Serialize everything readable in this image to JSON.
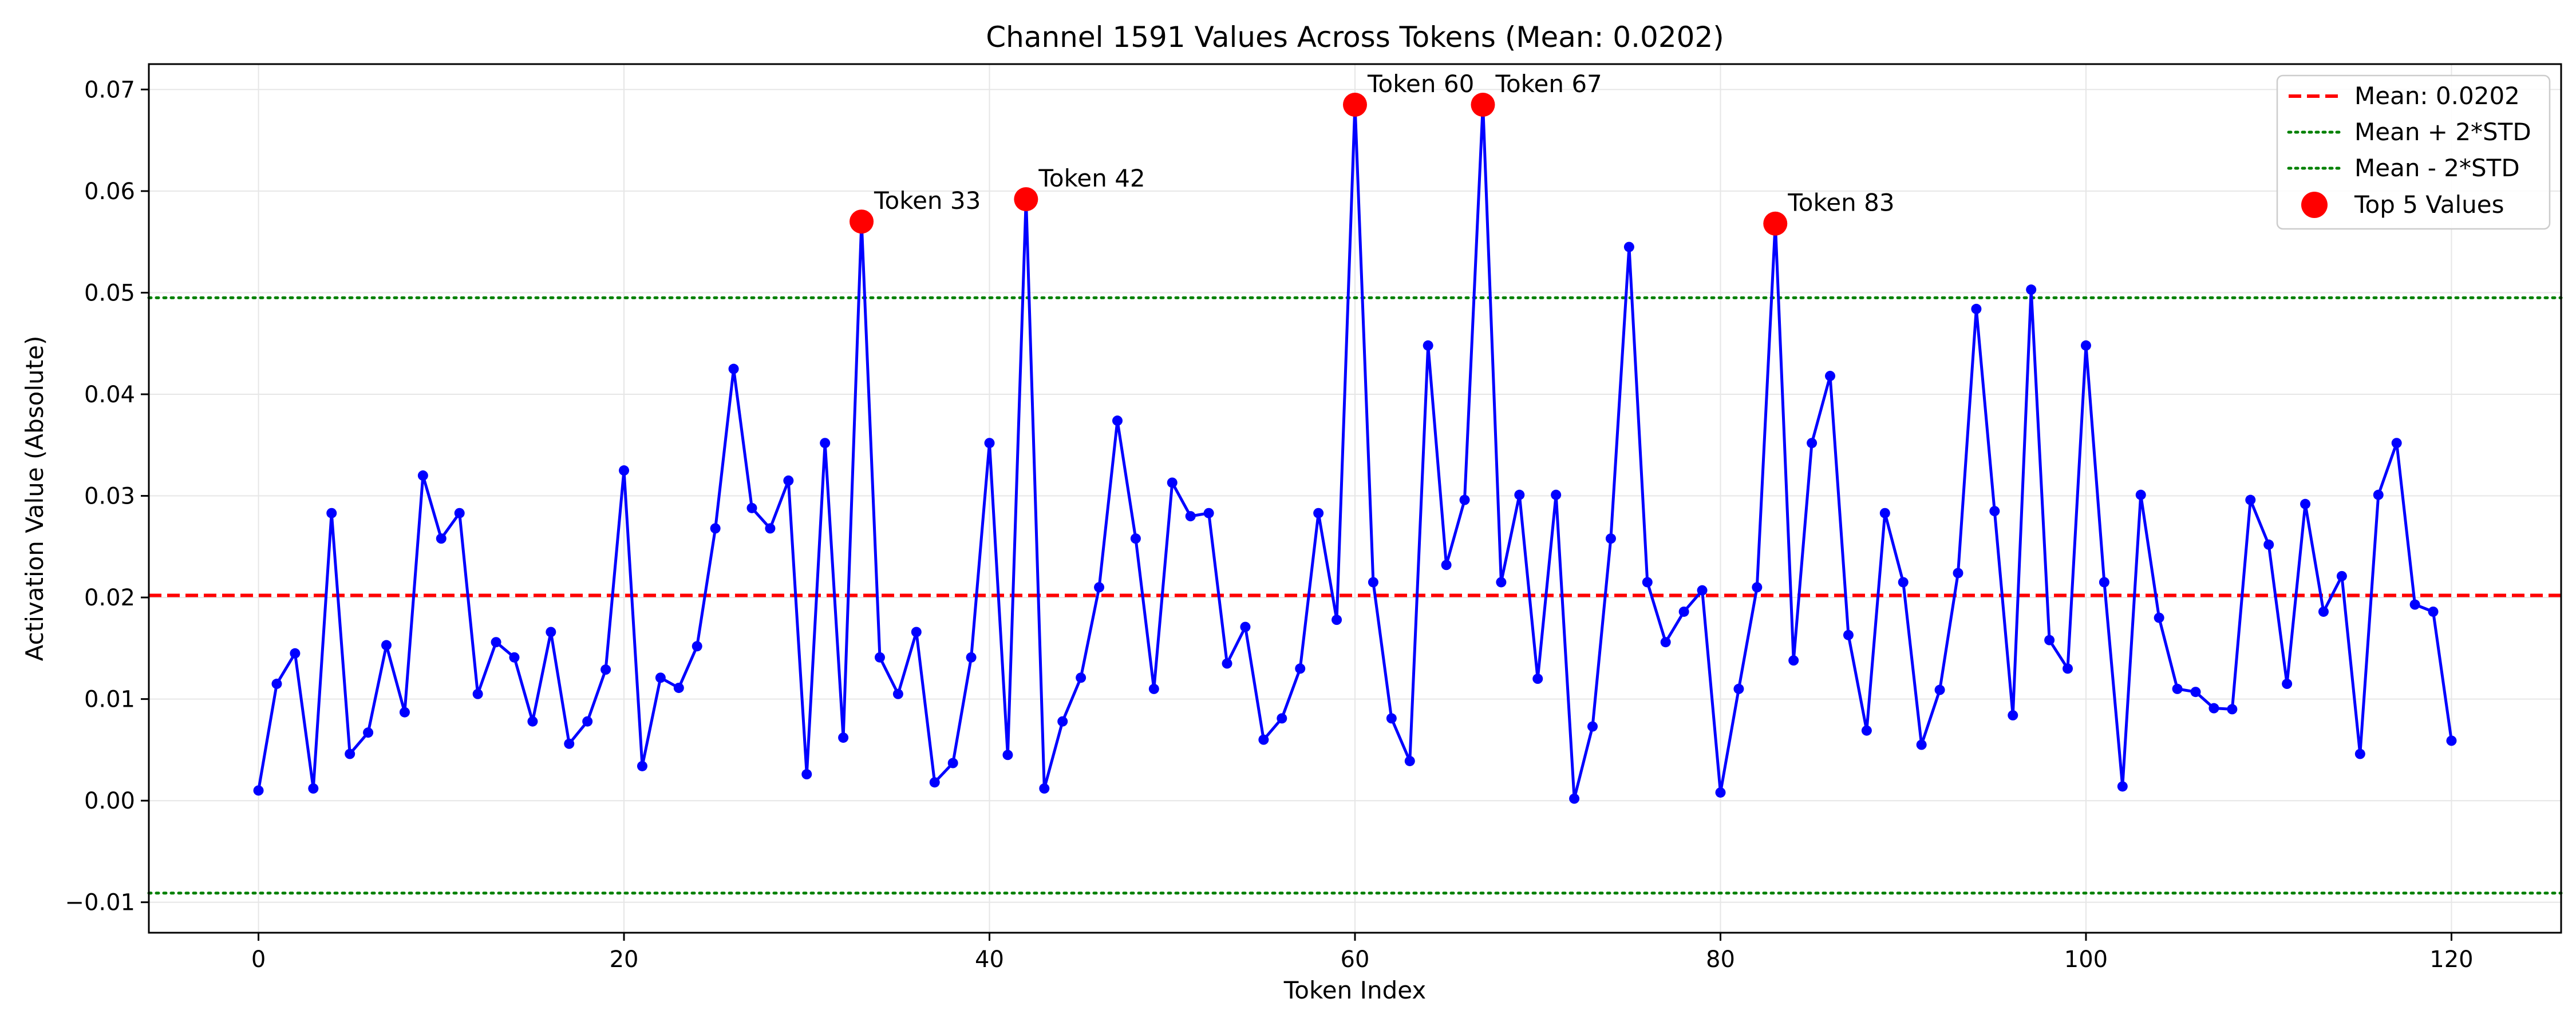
{
  "chart_data": {
    "type": "line",
    "title": "Channel 1591 Values Across Tokens (Mean: 0.0202)",
    "xlabel": "Token Index",
    "ylabel": "Activation Value (Absolute)",
    "xlim": [
      -6,
      126
    ],
    "ylim": [
      -0.013,
      0.0725
    ],
    "xticks": [
      0,
      20,
      40,
      60,
      80,
      100,
      120
    ],
    "yticks": [
      -0.01,
      0.0,
      0.01,
      0.02,
      0.03,
      0.04,
      0.05,
      0.06,
      0.07
    ],
    "ytick_labels": [
      "−0.01",
      "0.00",
      "0.01",
      "0.02",
      "0.03",
      "0.04",
      "0.05",
      "0.06",
      "0.07"
    ],
    "grid": true,
    "legend_position": "top-right",
    "colors": {
      "line": "#0000ff",
      "mean": "#ff0000",
      "std": "#008000",
      "top": "#ff0000"
    },
    "values": [
      0.001,
      0.0115,
      0.0145,
      0.0012,
      0.0283,
      0.0046,
      0.0067,
      0.0153,
      0.0087,
      0.032,
      0.0258,
      0.0283,
      0.0105,
      0.0156,
      0.0141,
      0.0078,
      0.0166,
      0.0056,
      0.0078,
      0.0129,
      0.0325,
      0.0034,
      0.0121,
      0.0111,
      0.0152,
      0.0268,
      0.0425,
      0.0288,
      0.0268,
      0.0315,
      0.0026,
      0.0352,
      0.0062,
      0.057,
      0.0141,
      0.0105,
      0.0166,
      0.0018,
      0.0037,
      0.0141,
      0.0352,
      0.0045,
      0.0592,
      0.0012,
      0.0078,
      0.0121,
      0.021,
      0.0374,
      0.0258,
      0.011,
      0.0313,
      0.028,
      0.0283,
      0.0135,
      0.0171,
      0.006,
      0.0081,
      0.013,
      0.0283,
      0.0178,
      0.0685,
      0.0215,
      0.0081,
      0.0039,
      0.0448,
      0.0232,
      0.0296,
      0.0685,
      0.0215,
      0.0301,
      0.012,
      0.0301,
      0.0002,
      0.0073,
      0.0258,
      0.0545,
      0.0215,
      0.0156,
      0.0186,
      0.0207,
      0.0008,
      0.011,
      0.021,
      0.0568,
      0.0138,
      0.0352,
      0.0418,
      0.0163,
      0.0069,
      0.0283,
      0.0215,
      0.0055,
      0.0109,
      0.0224,
      0.0484,
      0.0285,
      0.0084,
      0.0503,
      0.0158,
      0.013,
      0.0448,
      0.0215,
      0.0014,
      0.0301,
      0.018,
      0.011,
      0.0107,
      0.0091,
      0.009,
      0.0296,
      0.0252,
      0.0115,
      0.0292,
      0.0186,
      0.0221,
      0.0046,
      0.0301,
      0.0352,
      0.0193,
      0.0186,
      0.0059
    ],
    "mean_line": {
      "value": 0.0202,
      "label": "Mean: 0.0202"
    },
    "upper_line": {
      "value": 0.0495,
      "label": "Mean + 2*STD"
    },
    "lower_line": {
      "value": -0.0091,
      "label": "Mean - 2*STD"
    },
    "top_values": {
      "label": "Top 5 Values",
      "points": [
        {
          "x": 33,
          "y": 0.057,
          "label": "Token 33"
        },
        {
          "x": 42,
          "y": 0.0592,
          "label": "Token 42"
        },
        {
          "x": 60,
          "y": 0.0685,
          "label": "Token 60"
        },
        {
          "x": 67,
          "y": 0.0685,
          "label": "Token 67"
        },
        {
          "x": 83,
          "y": 0.0568,
          "label": "Token 83"
        }
      ]
    }
  }
}
